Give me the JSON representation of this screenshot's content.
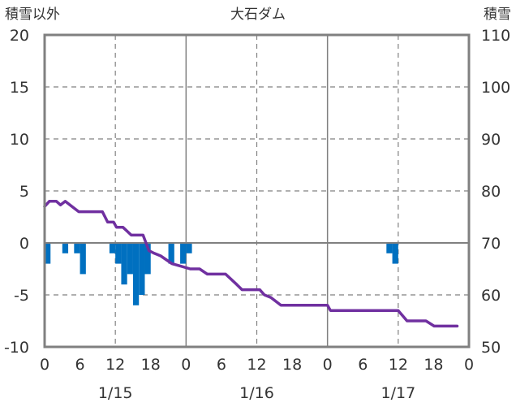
{
  "chart_data": {
    "type": "bar+line",
    "title": "大石ダム",
    "left_axis": {
      "label": "積雪以外",
      "range": [
        -10,
        20
      ],
      "ticks": [
        "20",
        "15",
        "10",
        "5",
        "0",
        "-5",
        "-10"
      ]
    },
    "right_axis": {
      "label": "積雪",
      "range": [
        50,
        110
      ],
      "ticks": [
        "110",
        "100",
        "90",
        "80",
        "70",
        "60",
        "50"
      ]
    },
    "x_axis": {
      "hour_ticks": [
        "0",
        "6",
        "12",
        "18",
        "0",
        "6",
        "12",
        "18",
        "0",
        "6",
        "12",
        "18",
        "0"
      ],
      "date_labels": [
        "1/15",
        "1/16",
        "1/17"
      ],
      "hours_total": 72
    },
    "grid": true,
    "colors": {
      "bars": "#0070c0",
      "line": "#7030a0",
      "frame": "#808080",
      "grid_dash": "#808080"
    },
    "bars": [
      {
        "hour": 0.5,
        "value": -2
      },
      {
        "hour": 3.5,
        "value": -1
      },
      {
        "hour": 5.5,
        "value": -1
      },
      {
        "hour": 6.5,
        "value": -3
      },
      {
        "hour": 11.5,
        "value": -1
      },
      {
        "hour": 12.5,
        "value": -2
      },
      {
        "hour": 13.5,
        "value": -4
      },
      {
        "hour": 14.5,
        "value": -3
      },
      {
        "hour": 15.5,
        "value": -6
      },
      {
        "hour": 16.5,
        "value": -5
      },
      {
        "hour": 17.5,
        "value": -3
      },
      {
        "hour": 21.5,
        "value": -2
      },
      {
        "hour": 23.5,
        "value": -2
      },
      {
        "hour": 24.5,
        "value": -1
      },
      {
        "hour": 58.5,
        "value": -1
      },
      {
        "hour": 59.5,
        "value": -2
      }
    ],
    "snow_depth": {
      "unit": "cm",
      "points": [
        [
          0,
          77
        ],
        [
          0.8,
          78
        ],
        [
          2,
          78
        ],
        [
          2.7,
          77.3
        ],
        [
          3.5,
          78
        ],
        [
          4.3,
          77.3
        ],
        [
          5.8,
          76
        ],
        [
          9.8,
          76
        ],
        [
          10.7,
          74
        ],
        [
          11.7,
          74
        ],
        [
          12.2,
          73
        ],
        [
          13.3,
          73
        ],
        [
          14.7,
          71.5
        ],
        [
          16.7,
          71.5
        ],
        [
          17.7,
          68.5
        ],
        [
          18.6,
          68
        ],
        [
          19.7,
          67.5
        ],
        [
          20.6,
          66.8
        ],
        [
          21.6,
          66
        ],
        [
          23.2,
          65.5
        ],
        [
          24.7,
          65
        ],
        [
          26.3,
          65
        ],
        [
          27.6,
          64
        ],
        [
          30.7,
          64
        ],
        [
          32.6,
          62
        ],
        [
          33.5,
          61
        ],
        [
          36.5,
          61
        ],
        [
          37.3,
          60
        ],
        [
          38.4,
          59.5
        ],
        [
          40.1,
          58
        ],
        [
          48,
          58
        ],
        [
          48.5,
          57
        ],
        [
          60,
          57
        ],
        [
          61.5,
          55
        ],
        [
          64.7,
          55
        ],
        [
          66.1,
          54
        ],
        [
          70,
          54
        ]
      ]
    }
  }
}
